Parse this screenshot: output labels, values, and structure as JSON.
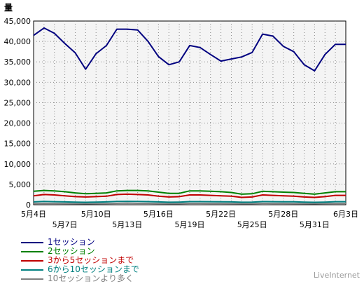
{
  "chart_data": {
    "type": "line",
    "ylabel": "量",
    "ylim": [
      0,
      45000
    ],
    "yticks": [
      "0",
      "5,000",
      "10,000",
      "15,000",
      "20,000",
      "25,000",
      "30,000",
      "35,000",
      "40,000",
      "45,000"
    ],
    "xlabels_top": [
      "5月4日",
      "5月10日",
      "5月16日",
      "5月22日",
      "5月28日",
      "6月3日"
    ],
    "xlabels_bottom": [
      "5月7日",
      "5月13日",
      "5月19日",
      "5月25日",
      "5月31日"
    ],
    "x": [
      "5月4日",
      "5月5日",
      "5月6日",
      "5月7日",
      "5月8日",
      "5月9日",
      "5月10日",
      "5月11日",
      "5月12日",
      "5月13日",
      "5月14日",
      "5月15日",
      "5月16日",
      "5月17日",
      "5月18日",
      "5月19日",
      "5月20日",
      "5月21日",
      "5月22日",
      "5月23日",
      "5月24日",
      "5月25日",
      "5月26日",
      "5月27日",
      "5月28日",
      "5月29日",
      "5月30日",
      "5月31日",
      "6月1日",
      "6月2日",
      "6月3日"
    ],
    "grid": true,
    "series": [
      {
        "name": "1セッション",
        "color": "#000080",
        "values": [
          41500,
          43300,
          42000,
          39500,
          37200,
          33200,
          37000,
          39000,
          43000,
          43000,
          42800,
          40000,
          36300,
          34300,
          35000,
          39000,
          38500,
          36800,
          35200,
          35700,
          36200,
          37300,
          41800,
          41300,
          38800,
          37500,
          34300,
          32800,
          36800,
          39300,
          39300
        ]
      },
      {
        "name": "2セッション",
        "color": "#008000",
        "values": [
          3300,
          3500,
          3400,
          3200,
          2900,
          2700,
          2800,
          2900,
          3400,
          3500,
          3500,
          3400,
          3100,
          2800,
          2800,
          3400,
          3400,
          3300,
          3200,
          3000,
          2600,
          2700,
          3300,
          3200,
          3100,
          3000,
          2800,
          2600,
          2900,
          3200,
          3200
        ]
      },
      {
        "name": "3から5セッションまで",
        "color": "#c00000",
        "values": [
          2200,
          2500,
          2400,
          2200,
          2000,
          1900,
          2000,
          2100,
          2500,
          2600,
          2500,
          2400,
          2100,
          1900,
          2000,
          2400,
          2400,
          2300,
          2200,
          2100,
          1800,
          1900,
          2400,
          2300,
          2200,
          2100,
          1900,
          1800,
          2000,
          2300,
          2300
        ]
      },
      {
        "name": "6から10セッションまで",
        "color": "#008080",
        "values": [
          700,
          800,
          750,
          700,
          650,
          600,
          650,
          700,
          800,
          850,
          800,
          780,
          700,
          620,
          650,
          780,
          780,
          750,
          720,
          700,
          620,
          640,
          780,
          760,
          740,
          720,
          650,
          600,
          660,
          760,
          760
        ]
      },
      {
        "name": "10セッションより多く",
        "color": "#808080",
        "values": [
          300,
          350,
          330,
          300,
          280,
          260,
          280,
          300,
          350,
          370,
          350,
          340,
          300,
          270,
          280,
          340,
          340,
          330,
          320,
          300,
          270,
          280,
          340,
          330,
          320,
          310,
          280,
          260,
          290,
          330,
          330
        ]
      }
    ]
  },
  "legend": {
    "items": [
      {
        "label": "1セッション",
        "color": "#000080"
      },
      {
        "label": "2セッション",
        "color": "#008000"
      },
      {
        "label": "3から5セッションまで",
        "color": "#c00000"
      },
      {
        "label": "6から10セッションまで",
        "color": "#008080"
      },
      {
        "label": "10セッションより多く",
        "color": "#808080"
      }
    ]
  },
  "watermark": "LiveInternet"
}
